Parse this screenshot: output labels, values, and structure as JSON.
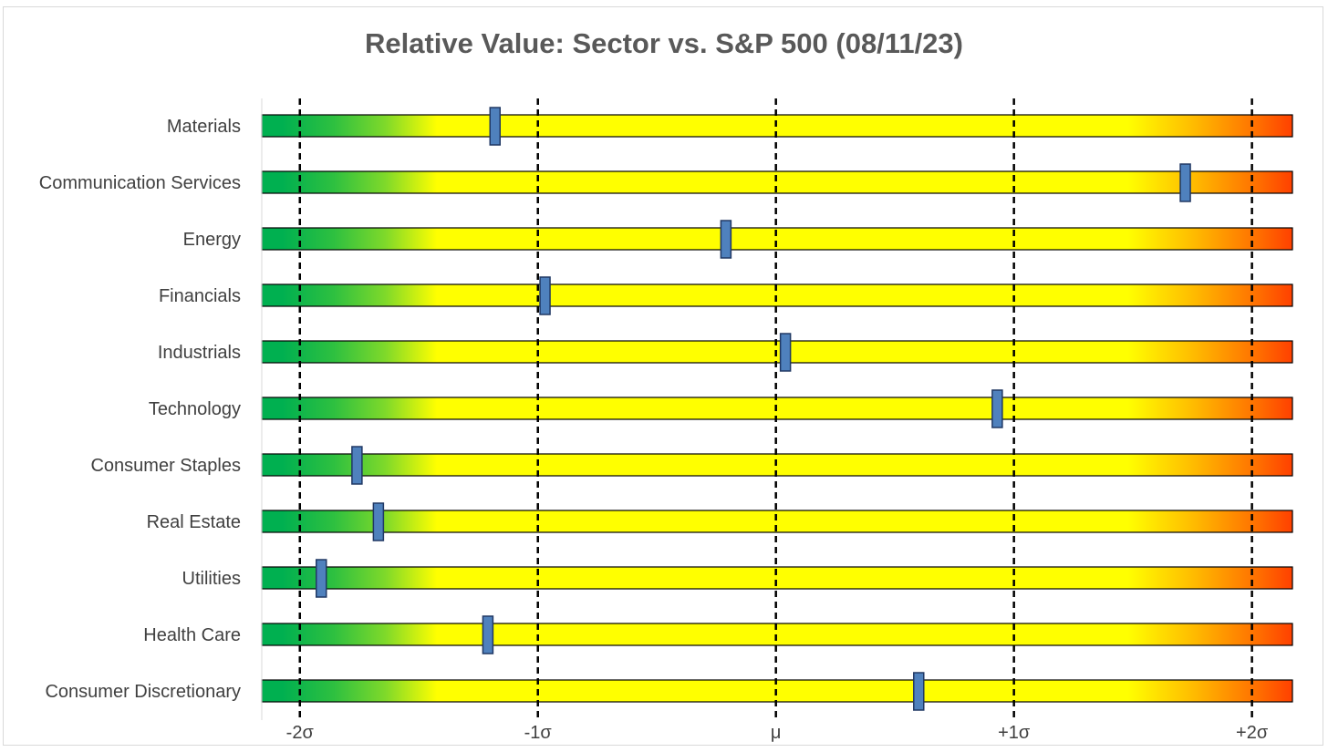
{
  "chart_data": {
    "type": "bar",
    "title": "Relative Value: Sector vs. S&P 500 (08/11/23)",
    "categories": [
      "Materials",
      "Communication Services",
      "Energy",
      "Financials",
      "Industrials",
      "Technology",
      "Consumer Staples",
      "Real Estate",
      "Utilities",
      "Health Care",
      "Consumer Discretionary"
    ],
    "values": [
      -1.18,
      1.72,
      -0.21,
      -0.97,
      0.04,
      0.93,
      -1.76,
      -1.67,
      -1.91,
      -1.21,
      0.6
    ],
    "x_ticks": [
      {
        "value": -2,
        "label": "-2σ"
      },
      {
        "value": -1,
        "label": "-1σ"
      },
      {
        "value": 0,
        "label": "μ"
      },
      {
        "value": 1,
        "label": "+1σ"
      },
      {
        "value": 2,
        "label": "+2σ"
      }
    ],
    "xlim": [
      -2.16,
      2.17
    ],
    "grid": "dashed vertical lines at -2σ, -1σ, μ, +1σ, +2σ",
    "legend": "none",
    "colors": {
      "green": "#00b050",
      "yellow": "#ffff00",
      "red": "#ff4000",
      "marker": "#4f81bd",
      "marker_border": "#203864"
    }
  }
}
